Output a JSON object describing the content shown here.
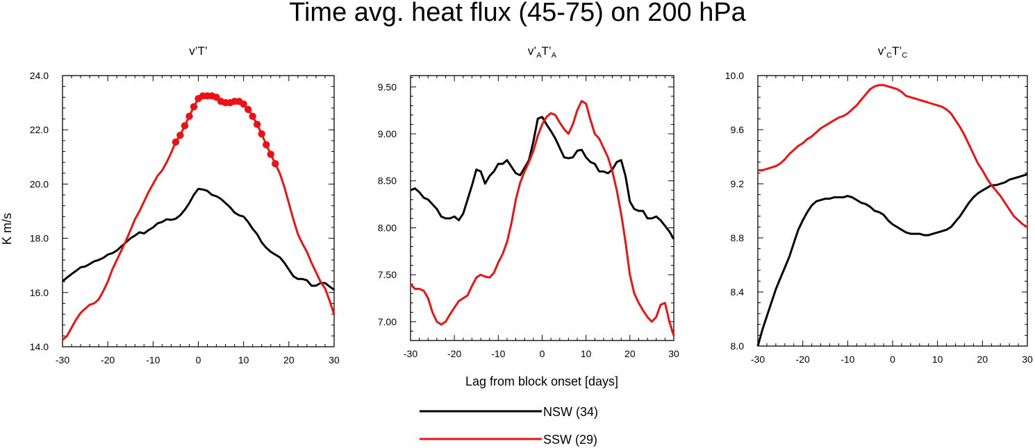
{
  "figure_title": "Time avg. heat flux (45-75) on 200 hPa",
  "shared_ylabel": "K m/s",
  "shared_xlabel": "Lag from block onset [days]",
  "colors": {
    "NSW": "#000000",
    "SSW": "#ee1111"
  },
  "legend": [
    {
      "key": "NSW",
      "label": "NSW (34)"
    },
    {
      "key": "SSW",
      "label": "SSW (29)"
    }
  ],
  "chart_data": [
    {
      "type": "line",
      "title_parts": [
        [
          "v’T’",
          ""
        ]
      ],
      "xlim": [
        -30,
        30
      ],
      "ylim": [
        14.0,
        24.0
      ],
      "xticks": [
        -30,
        -20,
        -10,
        0,
        10,
        20,
        30
      ],
      "xtick_labels": [
        "-30",
        "-20",
        "-10",
        "0",
        "10",
        "20",
        "30"
      ],
      "yticks": [
        14,
        16,
        18,
        20,
        22,
        24
      ],
      "ytick_labels": [
        "14.0",
        "16.0",
        "18.0",
        "20.0",
        "22.0",
        "24.0"
      ],
      "series": [
        {
          "key": "NSW",
          "x": [
            -30,
            -29,
            -28,
            -27,
            -26,
            -25,
            -24,
            -23,
            -22,
            -21,
            -20,
            -19,
            -18,
            -17,
            -16,
            -15,
            -14,
            -13,
            -12,
            -11,
            -10,
            -9,
            -8,
            -7,
            -6,
            -5,
            -4,
            -3,
            -2,
            -1,
            0,
            1,
            2,
            3,
            4,
            5,
            6,
            7,
            8,
            9,
            10,
            11,
            12,
            13,
            14,
            15,
            16,
            17,
            18,
            19,
            20,
            21,
            22,
            23,
            24,
            25,
            26,
            27,
            28,
            29,
            30
          ],
          "y": [
            16.42,
            16.55,
            16.68,
            16.8,
            16.93,
            16.96,
            17.05,
            17.15,
            17.2,
            17.28,
            17.4,
            17.45,
            17.55,
            17.7,
            17.85,
            18.0,
            18.1,
            18.22,
            18.18,
            18.3,
            18.4,
            18.55,
            18.6,
            18.7,
            18.68,
            18.72,
            18.85,
            19.05,
            19.3,
            19.6,
            19.82,
            19.8,
            19.75,
            19.6,
            19.55,
            19.45,
            19.3,
            19.15,
            18.95,
            18.85,
            18.8,
            18.6,
            18.35,
            18.15,
            17.85,
            17.65,
            17.5,
            17.4,
            17.3,
            17.1,
            16.85,
            16.6,
            16.5,
            16.5,
            16.45,
            16.25,
            16.25,
            16.35,
            16.35,
            16.22,
            16.1
          ]
        },
        {
          "key": "SSW",
          "x": [
            -30,
            -29,
            -28,
            -27,
            -26,
            -25,
            -24,
            -23,
            -22,
            -21,
            -20,
            -19,
            -18,
            -17,
            -16,
            -15,
            -14,
            -13,
            -12,
            -11,
            -10,
            -9,
            -8,
            -7,
            -6,
            -5,
            -4,
            -3,
            -2,
            -1,
            0,
            1,
            2,
            3,
            4,
            5,
            6,
            7,
            8,
            9,
            10,
            11,
            12,
            13,
            14,
            15,
            16,
            17,
            18,
            19,
            20,
            21,
            22,
            23,
            24,
            25,
            26,
            27,
            28,
            29,
            30
          ],
          "y": [
            14.25,
            14.4,
            14.7,
            15.0,
            15.25,
            15.4,
            15.55,
            15.6,
            15.75,
            16.05,
            16.4,
            16.85,
            17.2,
            17.55,
            17.9,
            18.3,
            18.7,
            19.0,
            19.35,
            19.7,
            20.0,
            20.3,
            20.5,
            20.8,
            21.15,
            21.55,
            21.8,
            22.15,
            22.5,
            22.85,
            23.15,
            23.25,
            23.25,
            23.25,
            23.2,
            23.05,
            23.0,
            23.0,
            23.05,
            23.05,
            22.95,
            22.75,
            22.5,
            22.2,
            21.85,
            21.45,
            21.1,
            20.75,
            20.4,
            19.9,
            19.3,
            18.7,
            18.15,
            17.8,
            17.5,
            17.1,
            16.75,
            16.4,
            16.15,
            15.7,
            15.2
          ],
          "significant_x": [
            -5,
            -4,
            -3,
            -2,
            -1,
            0,
            1,
            2,
            3,
            4,
            5,
            6,
            7,
            8,
            9,
            10,
            11,
            12,
            13,
            14,
            15,
            16,
            17
          ]
        }
      ]
    },
    {
      "type": "line",
      "title_parts": [
        [
          "v’",
          ""
        ],
        [
          "",
          "A"
        ],
        [
          "T’",
          ""
        ],
        [
          "",
          "A"
        ]
      ],
      "xlim": [
        -30,
        30
      ],
      "ylim": [
        6.8,
        9.62
      ],
      "xticks": [
        -30,
        -20,
        -10,
        0,
        10,
        20,
        30
      ],
      "xtick_labels": [
        "-30",
        "-20",
        "-10",
        "0",
        "10",
        "20",
        "30"
      ],
      "yticks": [
        7.0,
        7.5,
        8.0,
        8.5,
        9.0,
        9.5
      ],
      "ytick_labels": [
        "7.00",
        "7.50",
        "8.00",
        "8.50",
        "9.00",
        "9.50"
      ],
      "series": [
        {
          "key": "NSW",
          "x": [
            -30,
            -29,
            -28,
            -27,
            -26,
            -25,
            -24,
            -23,
            -22,
            -21,
            -20,
            -19,
            -18,
            -17,
            -16,
            -15,
            -14,
            -13,
            -12,
            -11,
            -10,
            -9,
            -8,
            -7,
            -6,
            -5,
            -4,
            -3,
            -2,
            -1,
            0,
            1,
            2,
            3,
            4,
            5,
            6,
            7,
            8,
            9,
            10,
            11,
            12,
            13,
            14,
            15,
            16,
            17,
            18,
            19,
            20,
            21,
            22,
            23,
            24,
            25,
            26,
            27,
            28,
            29,
            30
          ],
          "y": [
            8.4,
            8.42,
            8.38,
            8.32,
            8.3,
            8.25,
            8.2,
            8.12,
            8.1,
            8.1,
            8.12,
            8.08,
            8.15,
            8.3,
            8.45,
            8.62,
            8.6,
            8.47,
            8.55,
            8.6,
            8.68,
            8.68,
            8.72,
            8.65,
            8.58,
            8.56,
            8.64,
            8.72,
            8.92,
            9.16,
            9.18,
            9.1,
            9.03,
            8.95,
            8.85,
            8.75,
            8.74,
            8.75,
            8.82,
            8.83,
            8.75,
            8.7,
            8.68,
            8.6,
            8.6,
            8.58,
            8.62,
            8.7,
            8.72,
            8.55,
            8.28,
            8.2,
            8.18,
            8.18,
            8.1,
            8.1,
            8.12,
            8.08,
            8.02,
            7.96,
            7.88
          ]
        },
        {
          "key": "SSW",
          "x": [
            -30,
            -29,
            -28,
            -27,
            -26,
            -25,
            -24,
            -23,
            -22,
            -21,
            -20,
            -19,
            -18,
            -17,
            -16,
            -15,
            -14,
            -13,
            -12,
            -11,
            -10,
            -9,
            -8,
            -7,
            -6,
            -5,
            -4,
            -3,
            -2,
            -1,
            0,
            1,
            2,
            3,
            4,
            5,
            6,
            7,
            8,
            9,
            10,
            11,
            12,
            13,
            14,
            15,
            16,
            17,
            18,
            19,
            20,
            21,
            22,
            23,
            24,
            25,
            26,
            27,
            28,
            29,
            30
          ],
          "y": [
            7.4,
            7.35,
            7.35,
            7.33,
            7.25,
            7.1,
            7.0,
            6.97,
            7.0,
            7.08,
            7.15,
            7.22,
            7.25,
            7.28,
            7.38,
            7.47,
            7.5,
            7.48,
            7.47,
            7.52,
            7.63,
            7.72,
            7.85,
            8.05,
            8.3,
            8.48,
            8.6,
            8.7,
            8.82,
            8.98,
            9.1,
            9.18,
            9.22,
            9.2,
            9.12,
            9.05,
            9.0,
            9.1,
            9.25,
            9.35,
            9.32,
            9.15,
            9.0,
            8.95,
            8.85,
            8.75,
            8.6,
            8.4,
            8.15,
            7.85,
            7.5,
            7.3,
            7.2,
            7.12,
            7.05,
            7.0,
            7.05,
            7.18,
            7.2,
            7.0,
            6.85
          ]
        }
      ]
    },
    {
      "type": "line",
      "title_parts": [
        [
          "v’",
          ""
        ],
        [
          "",
          "C"
        ],
        [
          "T’",
          ""
        ],
        [
          "",
          "C"
        ]
      ],
      "xlim": [
        -30,
        30
      ],
      "ylim": [
        8.0,
        10.0
      ],
      "xticks": [
        -30,
        -20,
        -10,
        0,
        10,
        20,
        30
      ],
      "xtick_labels": [
        "-30",
        "-20",
        "-10",
        "0",
        "10",
        "20",
        "30"
      ],
      "yticks": [
        8.0,
        8.4,
        8.8,
        9.2,
        9.6,
        10.0
      ],
      "ytick_labels": [
        "8.0",
        "8.4",
        "8.8",
        "9.2",
        "9.6",
        "10.0"
      ],
      "series": [
        {
          "key": "NSW",
          "x": [
            -30,
            -29,
            -28,
            -27,
            -26,
            -25,
            -24,
            -23,
            -22,
            -21,
            -20,
            -19,
            -18,
            -17,
            -16,
            -15,
            -14,
            -13,
            -12,
            -11,
            -10,
            -9,
            -8,
            -7,
            -6,
            -5,
            -4,
            -3,
            -2,
            -1,
            0,
            1,
            2,
            3,
            4,
            5,
            6,
            7,
            8,
            9,
            10,
            11,
            12,
            13,
            14,
            15,
            16,
            17,
            18,
            19,
            20,
            21,
            22,
            23,
            24,
            25,
            26,
            27,
            28,
            29,
            30
          ],
          "y": [
            8.0,
            8.12,
            8.22,
            8.32,
            8.42,
            8.5,
            8.58,
            8.66,
            8.76,
            8.86,
            8.93,
            8.99,
            9.04,
            9.07,
            9.08,
            9.09,
            9.09,
            9.1,
            9.1,
            9.1,
            9.11,
            9.1,
            9.08,
            9.06,
            9.05,
            9.03,
            9.0,
            8.99,
            8.97,
            8.93,
            8.9,
            8.88,
            8.86,
            8.84,
            8.83,
            8.83,
            8.83,
            8.82,
            8.82,
            8.83,
            8.84,
            8.85,
            8.86,
            8.88,
            8.92,
            8.96,
            9.01,
            9.06,
            9.1,
            9.13,
            9.15,
            9.17,
            9.19,
            9.19,
            9.2,
            9.21,
            9.23,
            9.24,
            9.25,
            9.26,
            9.27
          ]
        },
        {
          "key": "SSW",
          "x": [
            -30,
            -29,
            -28,
            -27,
            -26,
            -25,
            -24,
            -23,
            -22,
            -21,
            -20,
            -19,
            -18,
            -17,
            -16,
            -15,
            -14,
            -13,
            -12,
            -11,
            -10,
            -9,
            -8,
            -7,
            -6,
            -5,
            -4,
            -3,
            -2,
            -1,
            0,
            1,
            2,
            3,
            4,
            5,
            6,
            7,
            8,
            9,
            10,
            11,
            12,
            13,
            14,
            15,
            16,
            17,
            18,
            19,
            20,
            21,
            22,
            23,
            24,
            25,
            26,
            27,
            28,
            29,
            30
          ],
          "y": [
            9.3,
            9.3,
            9.31,
            9.32,
            9.33,
            9.35,
            9.38,
            9.42,
            9.45,
            9.48,
            9.5,
            9.53,
            9.55,
            9.58,
            9.61,
            9.63,
            9.65,
            9.67,
            9.69,
            9.7,
            9.72,
            9.75,
            9.78,
            9.82,
            9.86,
            9.9,
            9.92,
            9.93,
            9.93,
            9.92,
            9.91,
            9.9,
            9.88,
            9.85,
            9.84,
            9.83,
            9.82,
            9.81,
            9.8,
            9.79,
            9.78,
            9.77,
            9.75,
            9.72,
            9.67,
            9.62,
            9.56,
            9.49,
            9.42,
            9.35,
            9.3,
            9.24,
            9.19,
            9.15,
            9.11,
            9.06,
            9.01,
            8.96,
            8.93,
            8.9,
            8.88
          ]
        }
      ]
    }
  ]
}
